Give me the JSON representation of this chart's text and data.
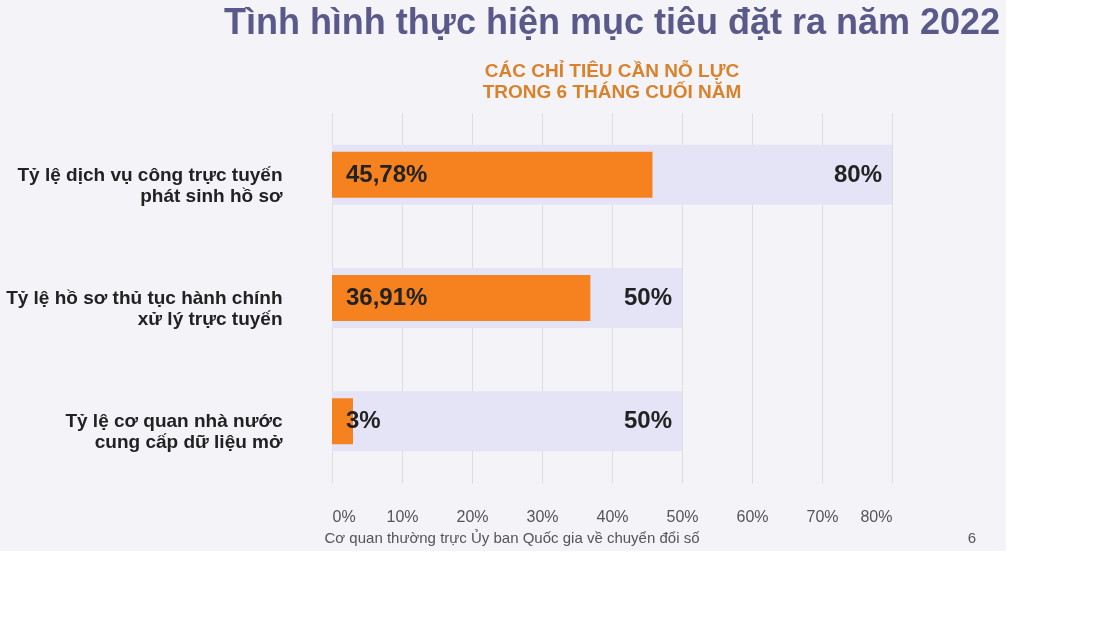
{
  "chart_data": {
    "type": "bar",
    "orientation": "horizontal",
    "title": "Tình hình thực hiện mục tiêu đặt ra năm 2022",
    "subtitle": "CÁC CHỈ TIÊU CẦN NỖ LỰC\nTRONG 6 THÁNG CUỐI NĂM",
    "categories": [
      "Tỷ lệ dịch vụ công trực tuyến\nphát sinh hồ sơ",
      "Tỷ lệ hồ sơ thủ tục hành chính\nxử lý trực tuyến",
      "Tỷ lệ cơ quan nhà nước\ncung cấp dữ liệu mở"
    ],
    "series": [
      {
        "color": "#e4e4f6",
        "values": [
          80,
          50,
          50
        ],
        "value_labels": [
          "80%",
          "50%",
          "50%"
        ]
      },
      {
        "color": "#f5821f",
        "values": [
          45.78,
          36.91,
          3
        ],
        "value_labels": [
          "45,78%",
          "36,91%",
          "3%"
        ]
      }
    ],
    "xlim": [
      0,
      80
    ],
    "xticks": [
      {
        "value": 0,
        "label": "0%"
      },
      {
        "value": 10,
        "label": "10%"
      },
      {
        "value": 20,
        "label": "20%"
      },
      {
        "value": 30,
        "label": "30%"
      },
      {
        "value": 40,
        "label": "40%"
      },
      {
        "value": 50,
        "label": "50%"
      },
      {
        "value": 60,
        "label": "60%"
      },
      {
        "value": 70,
        "label": "70%"
      },
      {
        "value": 80,
        "label": "80%"
      }
    ],
    "grid": "x",
    "legend": false,
    "annotations": [
      "Cơ quan thường trực Ủy ban Quốc gia về chuyển đổi số",
      "6"
    ]
  }
}
